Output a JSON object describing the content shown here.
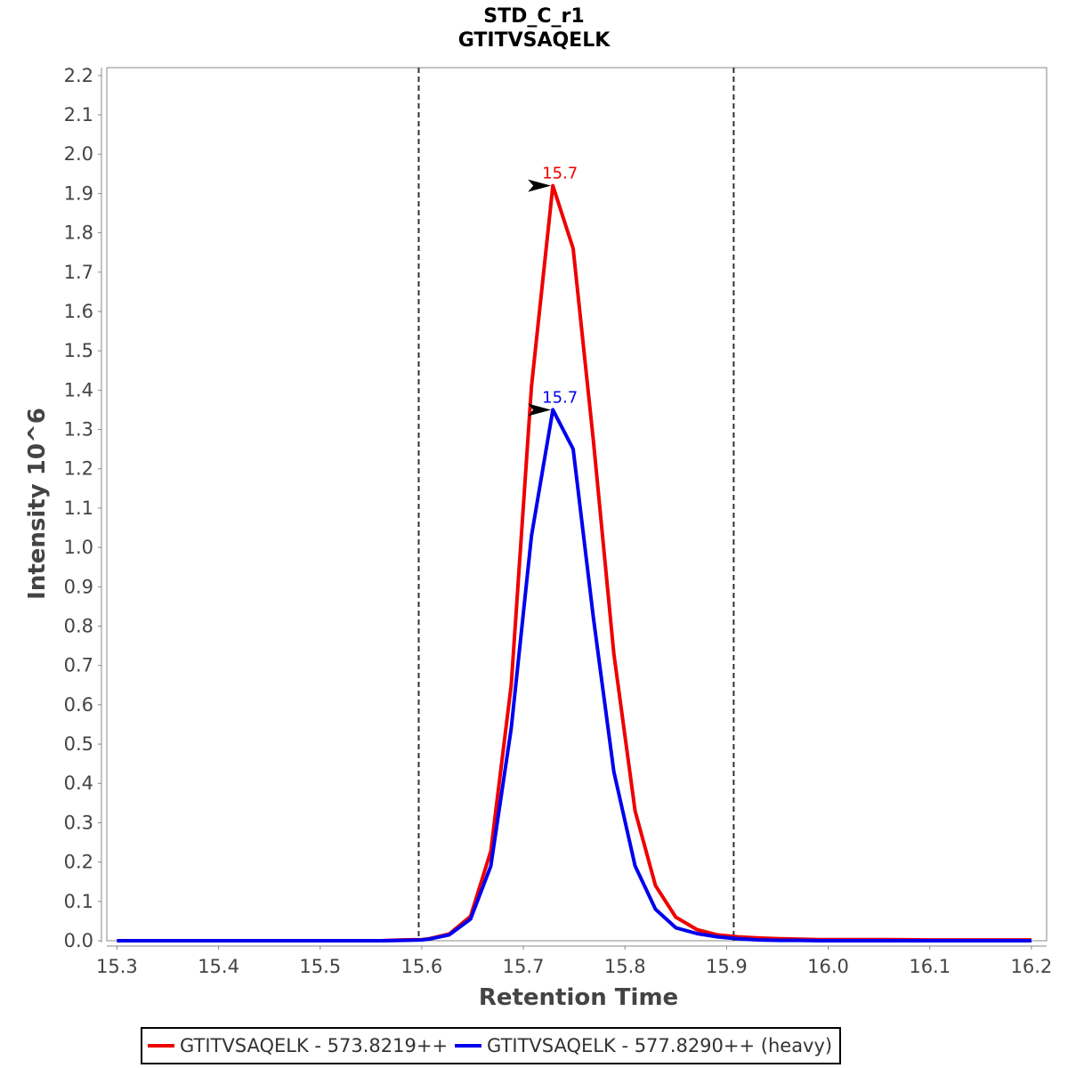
{
  "chart_data": {
    "type": "line",
    "title": "STD_C_r1",
    "subtitle": "GTITVSAQELK",
    "xlabel": "Retention Time",
    "ylabel": "Intensity 10^6",
    "xlim": [
      15.29,
      16.215
    ],
    "ylim": [
      0.0,
      2.22
    ],
    "x_ticks": [
      "15.3",
      "15.4",
      "15.5",
      "15.6",
      "15.7",
      "15.8",
      "15.9",
      "16.0",
      "16.1",
      "16.2"
    ],
    "y_ticks": [
      "0.0",
      "0.1",
      "0.2",
      "0.3",
      "0.4",
      "0.5",
      "0.6",
      "0.7",
      "0.8",
      "0.9",
      "1.0",
      "1.1",
      "1.2",
      "1.3",
      "1.4",
      "1.5",
      "1.6",
      "1.7",
      "1.8",
      "1.9",
      "2.0",
      "2.1",
      "2.2"
    ],
    "grid": false,
    "legend_position": "bottom",
    "boundaries": [
      15.597,
      15.907
    ],
    "series": [
      {
        "name": "GTITVSAQELK - 573.8219++",
        "color": "#ee0000",
        "x": [
          15.3,
          15.32,
          15.34,
          15.36,
          15.38,
          15.4,
          15.42,
          15.44,
          15.46,
          15.48,
          15.5,
          15.52,
          15.54,
          15.56,
          15.58,
          15.6,
          15.607,
          15.627,
          15.648,
          15.668,
          15.688,
          15.708,
          15.729,
          15.749,
          15.769,
          15.789,
          15.81,
          15.83,
          15.85,
          15.871,
          15.891,
          15.911,
          15.931,
          15.952,
          15.972,
          15.992,
          16.02,
          16.06,
          16.1,
          16.14,
          16.18,
          16.2
        ],
        "values": [
          0.0,
          0.0,
          0.0,
          0.0,
          0.0,
          0.0,
          0.0,
          0.0,
          0.0,
          0.0,
          0.0,
          0.0,
          0.0,
          0.0,
          0.002,
          0.003,
          0.005,
          0.017,
          0.062,
          0.228,
          0.65,
          1.41,
          1.92,
          1.76,
          1.27,
          0.73,
          0.33,
          0.14,
          0.06,
          0.028,
          0.015,
          0.01,
          0.007,
          0.005,
          0.004,
          0.003,
          0.003,
          0.003,
          0.002,
          0.002,
          0.002,
          0.002
        ]
      },
      {
        "name": "GTITVSAQELK - 577.8290++ (heavy)",
        "color": "#0000ee",
        "x": [
          15.3,
          15.32,
          15.34,
          15.36,
          15.38,
          15.4,
          15.42,
          15.44,
          15.46,
          15.48,
          15.5,
          15.52,
          15.54,
          15.56,
          15.58,
          15.6,
          15.607,
          15.627,
          15.648,
          15.668,
          15.688,
          15.708,
          15.729,
          15.749,
          15.769,
          15.789,
          15.81,
          15.83,
          15.85,
          15.871,
          15.891,
          15.911,
          15.931,
          15.952,
          15.972,
          15.992,
          16.02,
          16.06,
          16.1,
          16.14,
          16.18,
          16.2
        ],
        "values": [
          0.0,
          0.0,
          0.0,
          0.0,
          0.0,
          0.0,
          0.0,
          0.0,
          0.0,
          0.0,
          0.0,
          0.0,
          0.0,
          0.0,
          0.001,
          0.002,
          0.004,
          0.015,
          0.055,
          0.19,
          0.54,
          1.03,
          1.35,
          1.25,
          0.82,
          0.43,
          0.19,
          0.08,
          0.033,
          0.018,
          0.01,
          0.005,
          0.002,
          0.001,
          0.001,
          0.0,
          0.0,
          0.0,
          0.0,
          0.0,
          0.0,
          0.0
        ]
      }
    ],
    "annotations": [
      {
        "text": "15.7",
        "x": 15.729,
        "y": 1.92,
        "color": "#ee0000"
      },
      {
        "text": "15.7",
        "x": 15.729,
        "y": 1.35,
        "color": "#0000ee"
      }
    ]
  }
}
